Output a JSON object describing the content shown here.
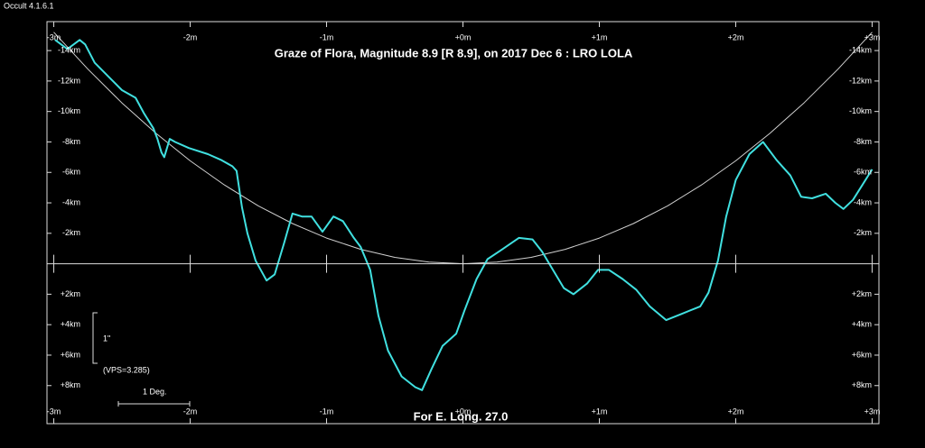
{
  "chart_data": {
    "type": "line",
    "software": "Occult 4.1.6.1",
    "title": "Graze of  Flora,  Magnitude 8.9 [R 8.9],  on 2017 Dec  6  :  LRO LOLA",
    "footer": "For E. Long. 27.0",
    "scale_label": "1\"",
    "vps_label": "(VPS=3.285)",
    "degree_label": "1 Deg.",
    "xlim": [
      -3.05,
      3.05
    ],
    "ylim": [
      10.5,
      -15.9
    ],
    "xticks": [
      {
        "value": -3,
        "label": "-3m"
      },
      {
        "value": -2,
        "label": "-2m"
      },
      {
        "value": -1,
        "label": "-1m"
      },
      {
        "value": 0,
        "label": "+0m"
      },
      {
        "value": 1,
        "label": "+1m"
      },
      {
        "value": 2,
        "label": "+2m"
      },
      {
        "value": 3,
        "label": "+3m"
      }
    ],
    "yticks": [
      {
        "value": -14,
        "label": "-14km"
      },
      {
        "value": -12,
        "label": "-12km"
      },
      {
        "value": -10,
        "label": "-10km"
      },
      {
        "value": -8,
        "label": "-8km"
      },
      {
        "value": -6,
        "label": "-6km"
      },
      {
        "value": -4,
        "label": "-4km"
      },
      {
        "value": -2,
        "label": "-2km"
      },
      {
        "value": 2,
        "label": "+2km"
      },
      {
        "value": 4,
        "label": "+4km"
      },
      {
        "value": 6,
        "label": "+6km"
      },
      {
        "value": 8,
        "label": "+8km"
      }
    ],
    "series": [
      {
        "color": "#40e0e0",
        "x": [
          -2.99,
          -2.9,
          -2.81,
          -2.77,
          -2.7,
          -2.6,
          -2.5,
          -2.4,
          -2.34,
          -2.27,
          -2.24,
          -2.21,
          -2.19,
          -2.15,
          -2.11,
          -2.01,
          -1.87,
          -1.77,
          -1.69,
          -1.66,
          -1.62,
          -1.58,
          -1.52,
          -1.44,
          -1.38,
          -1.31,
          -1.25,
          -1.18,
          -1.11,
          -1.03,
          -0.95,
          -0.88,
          -0.8,
          -0.75,
          -0.68,
          -0.62,
          -0.55,
          -0.45,
          -0.35,
          -0.3,
          -0.23,
          -0.15,
          -0.05,
          0.01,
          0.1,
          0.18,
          0.28,
          0.41,
          0.51,
          0.58,
          0.66,
          0.74,
          0.81,
          0.91,
          0.99,
          1.07,
          1.17,
          1.27,
          1.37,
          1.49,
          1.6,
          1.74,
          1.8,
          1.87,
          1.93,
          2.0,
          2.1,
          2.2,
          2.3,
          2.4,
          2.48,
          2.56,
          2.66,
          2.73,
          2.79,
          2.86,
          2.93,
          3.0
        ],
        "values": [
          -14.7,
          -14.1,
          -14.7,
          -14.4,
          -13.2,
          -12.3,
          -11.4,
          -10.9,
          -9.9,
          -8.9,
          -8.2,
          -7.3,
          -7.0,
          -8.2,
          -8.0,
          -7.6,
          -7.2,
          -6.8,
          -6.4,
          -6.1,
          -3.7,
          -2.0,
          -0.2,
          1.1,
          0.7,
          -1.4,
          -3.3,
          -3.1,
          -3.1,
          -2.1,
          -3.1,
          -2.8,
          -1.7,
          -1.1,
          0.4,
          3.4,
          5.7,
          7.4,
          8.1,
          8.3,
          6.9,
          5.4,
          4.6,
          3.1,
          1.0,
          -0.3,
          -0.9,
          -1.7,
          -1.6,
          -0.8,
          0.4,
          1.6,
          2.0,
          1.3,
          0.4,
          0.4,
          1.0,
          1.7,
          2.8,
          3.7,
          3.3,
          2.8,
          1.9,
          -0.2,
          -3.1,
          -5.5,
          -7.2,
          -8.0,
          -6.8,
          -5.8,
          -4.4,
          -4.3,
          -4.6,
          -4.0,
          -3.6,
          -4.2,
          -5.2,
          -6.2
        ]
      },
      {
        "color": "#d0d0d0",
        "x": [
          -3,
          -2.75,
          -2.5,
          -2.25,
          -2,
          -1.75,
          -1.5,
          -1.25,
          -1,
          -0.75,
          -0.5,
          -0.25,
          0,
          0.25,
          0.5,
          0.75,
          1,
          1.25,
          1.5,
          1.75,
          2,
          2.25,
          2.5,
          2.75,
          3
        ],
        "values": [
          -15.21,
          -12.78,
          -10.56,
          -8.56,
          -6.76,
          -5.18,
          -3.8,
          -2.64,
          -1.69,
          -0.95,
          -0.42,
          -0.11,
          0,
          -0.11,
          -0.42,
          -0.95,
          -1.69,
          -2.64,
          -3.8,
          -5.18,
          -6.76,
          -8.56,
          -10.56,
          -12.78,
          -15.21
        ]
      }
    ]
  }
}
